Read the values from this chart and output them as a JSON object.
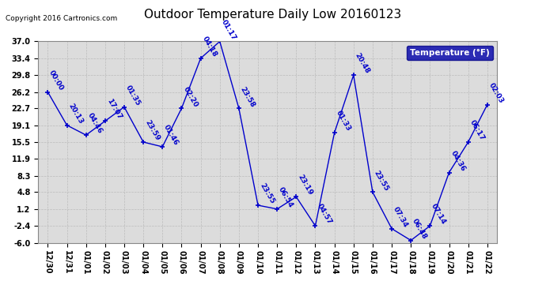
{
  "title": "Outdoor Temperature Daily Low 20160123",
  "copyright": "Copyright 2016 Cartronics.com",
  "legend_label": "Temperature (°F)",
  "x_labels": [
    "12/30",
    "12/31",
    "01/01",
    "01/02",
    "01/03",
    "01/04",
    "01/05",
    "01/06",
    "01/07",
    "01/08",
    "01/09",
    "01/10",
    "01/11",
    "01/12",
    "01/13",
    "01/14",
    "01/15",
    "01/16",
    "01/17",
    "01/18",
    "01/19",
    "01/20",
    "01/21",
    "01/22"
  ],
  "y_values": [
    26.2,
    19.1,
    17.0,
    20.0,
    23.0,
    15.5,
    14.5,
    22.7,
    33.4,
    37.0,
    22.7,
    2.0,
    1.2,
    3.8,
    -2.4,
    17.5,
    29.8,
    4.8,
    -3.0,
    -5.5,
    -2.4,
    9.0,
    15.5,
    23.5
  ],
  "time_labels": [
    "00:00",
    "20:13",
    "04:46",
    "17:07",
    "01:35",
    "23:59",
    "01:46",
    "02:20",
    "04:18",
    "01:17",
    "23:58",
    "23:55",
    "06:54",
    "23:19",
    "04:57",
    "01:33",
    "20:48",
    "23:55",
    "07:34",
    "06:48",
    "07:14",
    "04:36",
    "06:17",
    "02:03"
  ],
  "line_color": "#0000CC",
  "marker_color": "#0000CC",
  "grid_color": "#BBBBBB",
  "background_color": "#FFFFFF",
  "plot_bg_color": "#DCDCDC",
  "ylim": [
    -6.0,
    37.0
  ],
  "yticks": [
    -6.0,
    -2.4,
    1.2,
    4.8,
    8.3,
    11.9,
    15.5,
    19.1,
    22.7,
    26.2,
    29.8,
    33.4,
    37.0
  ],
  "title_fontsize": 11,
  "label_fontsize": 6.5,
  "tick_fontsize": 7,
  "copyright_fontsize": 6.5,
  "legend_fontsize": 7.5,
  "legend_bg": "#0000AA"
}
